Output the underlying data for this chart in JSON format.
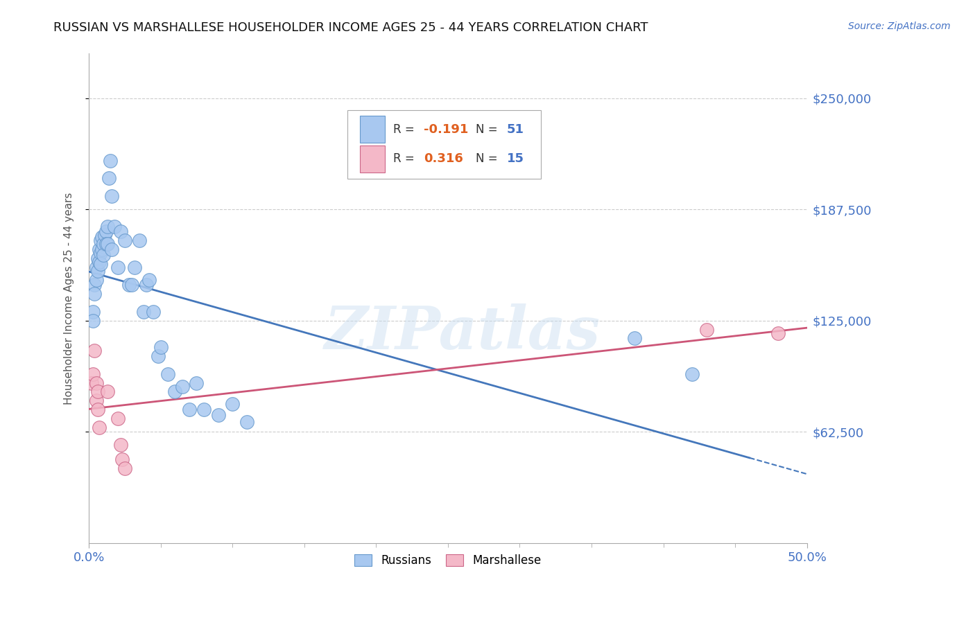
{
  "title": "RUSSIAN VS MARSHALLESE HOUSEHOLDER INCOME AGES 25 - 44 YEARS CORRELATION CHART",
  "source": "Source: ZipAtlas.com",
  "ylabel": "Householder Income Ages 25 - 44 years",
  "xlim": [
    0.0,
    0.5
  ],
  "ylim": [
    0,
    275000
  ],
  "yticks": [
    62500,
    125000,
    187500,
    250000
  ],
  "ytick_labels": [
    "$62,500",
    "$125,000",
    "$187,500",
    "$250,000"
  ],
  "xtick_labels": [
    "0.0%",
    "50.0%"
  ],
  "xtick_pos": [
    0.0,
    0.5
  ],
  "russian_color": "#a8c8f0",
  "russian_edge_color": "#6699cc",
  "marshallese_color": "#f4b8c8",
  "marshallese_edge_color": "#cc6688",
  "trendline_russian_color": "#4477bb",
  "trendline_marshallese_color": "#cc5577",
  "watermark": "ZIPatlas",
  "legend_R_color": "#e06020",
  "legend_N_color": "#4472c4",
  "russian_x": [
    0.003,
    0.003,
    0.004,
    0.004,
    0.005,
    0.005,
    0.006,
    0.006,
    0.007,
    0.007,
    0.008,
    0.008,
    0.008,
    0.009,
    0.009,
    0.01,
    0.01,
    0.011,
    0.012,
    0.012,
    0.013,
    0.013,
    0.014,
    0.015,
    0.016,
    0.016,
    0.018,
    0.02,
    0.022,
    0.025,
    0.028,
    0.03,
    0.032,
    0.035,
    0.038,
    0.04,
    0.042,
    0.045,
    0.048,
    0.05,
    0.055,
    0.06,
    0.065,
    0.07,
    0.075,
    0.08,
    0.09,
    0.1,
    0.11,
    0.38,
    0.42
  ],
  "russian_y": [
    130000,
    125000,
    145000,
    140000,
    155000,
    148000,
    160000,
    153000,
    165000,
    158000,
    170000,
    163000,
    157000,
    172000,
    165000,
    168000,
    162000,
    173000,
    175000,
    168000,
    178000,
    168000,
    205000,
    215000,
    195000,
    165000,
    178000,
    155000,
    175000,
    170000,
    145000,
    145000,
    155000,
    170000,
    130000,
    145000,
    148000,
    130000,
    105000,
    110000,
    95000,
    85000,
    88000,
    75000,
    90000,
    75000,
    72000,
    78000,
    68000,
    115000,
    95000
  ],
  "marshallese_x": [
    0.002,
    0.003,
    0.004,
    0.005,
    0.005,
    0.006,
    0.006,
    0.007,
    0.013,
    0.02,
    0.022,
    0.023,
    0.025,
    0.43,
    0.48
  ],
  "marshallese_y": [
    90000,
    95000,
    108000,
    90000,
    80000,
    85000,
    75000,
    65000,
    85000,
    70000,
    55000,
    47000,
    42000,
    120000,
    118000
  ]
}
